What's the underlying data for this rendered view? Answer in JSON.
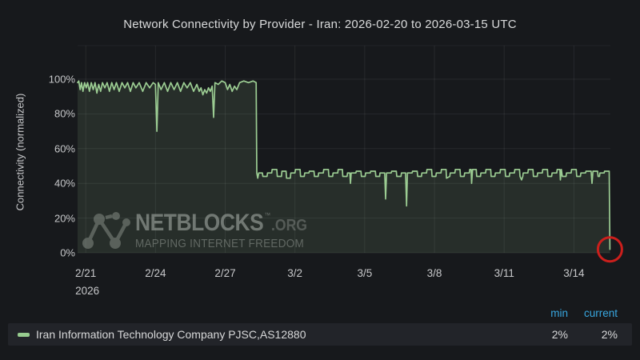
{
  "title": "Network Connectivity by Provider - Iran: 2026-02-20 to 2026-03-15 UTC",
  "watermark": {
    "brand": "NETBLOCKS",
    "tm": "™",
    "suffix": ".ORG",
    "tagline": "MAPPING INTERNET FREEDOM"
  },
  "legend": {
    "headers": {
      "min": "min",
      "current": "current"
    },
    "rows": [
      {
        "label": "Iran Information Technology Company PJSC,AS12880",
        "min": "2%",
        "current": "2%",
        "color": "#97cc8f"
      }
    ]
  },
  "colors": {
    "background": "#17191c",
    "series_green": "#9ccd93",
    "fill_green": "#9ccd93",
    "grid": "rgba(255,255,255,0.07)",
    "tick_text": "#c7c8ca",
    "title_text": "#dadbdc",
    "legend_header_blue": "#38a7e0",
    "annotation_red": "#cc1f1c"
  },
  "chart_data": {
    "type": "area",
    "title": "Network Connectivity by Provider - Iran: 2026-02-20 to 2026-03-15 UTC",
    "xlabel": "",
    "ylabel": "Connectivity (normalized)",
    "x_unit": "days since 2026-02-20 00:00 UTC",
    "x_domain": [
      0.65,
      23.57
    ],
    "ylim": [
      0,
      100
    ],
    "grid": true,
    "legend_position": "bottom",
    "y_ticks": [
      {
        "value": 0,
        "label": "0%"
      },
      {
        "value": 20,
        "label": "20%"
      },
      {
        "value": 40,
        "label": "40%"
      },
      {
        "value": 60,
        "label": "60%"
      },
      {
        "value": 80,
        "label": "80%"
      },
      {
        "value": 100,
        "label": "100%"
      }
    ],
    "x_ticks": [
      {
        "value": 1,
        "label": "2/21",
        "sub": "2026"
      },
      {
        "value": 4,
        "label": "2/24"
      },
      {
        "value": 7,
        "label": "2/27"
      },
      {
        "value": 10,
        "label": "3/2"
      },
      {
        "value": 13,
        "label": "3/5"
      },
      {
        "value": 16,
        "label": "3/8"
      },
      {
        "value": 19,
        "label": "3/11"
      },
      {
        "value": 22,
        "label": "3/14"
      }
    ],
    "series": [
      {
        "name": "Iran Information Technology Company PJSC,AS12880",
        "color": "#9ccd93",
        "stats": {
          "min": 2,
          "current": 2
        },
        "points": [
          [
            0.65,
            98
          ],
          [
            0.7,
            99
          ],
          [
            0.76,
            94
          ],
          [
            0.82,
            98
          ],
          [
            0.88,
            93
          ],
          [
            0.95,
            98
          ],
          [
            1.02,
            95
          ],
          [
            1.08,
            98
          ],
          [
            1.16,
            93
          ],
          [
            1.24,
            98
          ],
          [
            1.32,
            94
          ],
          [
            1.4,
            98
          ],
          [
            1.48,
            92
          ],
          [
            1.56,
            97
          ],
          [
            1.64,
            93
          ],
          [
            1.72,
            98
          ],
          [
            1.82,
            95
          ],
          [
            1.92,
            98
          ],
          [
            2.02,
            93
          ],
          [
            2.12,
            98
          ],
          [
            2.22,
            94
          ],
          [
            2.32,
            98
          ],
          [
            2.44,
            93
          ],
          [
            2.56,
            98
          ],
          [
            2.68,
            95
          ],
          [
            2.8,
            98
          ],
          [
            2.92,
            93
          ],
          [
            3.04,
            98
          ],
          [
            3.16,
            95
          ],
          [
            3.3,
            98
          ],
          [
            3.45,
            93
          ],
          [
            3.6,
            98
          ],
          [
            3.75,
            95
          ],
          [
            3.9,
            98
          ],
          [
            4.0,
            97
          ],
          [
            4.06,
            70
          ],
          [
            4.12,
            98
          ],
          [
            4.24,
            94
          ],
          [
            4.38,
            98
          ],
          [
            4.52,
            93
          ],
          [
            4.66,
            98
          ],
          [
            4.8,
            94
          ],
          [
            4.94,
            98
          ],
          [
            5.08,
            93
          ],
          [
            5.22,
            98
          ],
          [
            5.36,
            95
          ],
          [
            5.5,
            98
          ],
          [
            5.64,
            93
          ],
          [
            5.78,
            97
          ],
          [
            5.88,
            93
          ],
          [
            5.96,
            95
          ],
          [
            6.04,
            91
          ],
          [
            6.12,
            94
          ],
          [
            6.2,
            92
          ],
          [
            6.28,
            95
          ],
          [
            6.36,
            93
          ],
          [
            6.44,
            96
          ],
          [
            6.5,
            78
          ],
          [
            6.56,
            98
          ],
          [
            6.7,
            97
          ],
          [
            6.85,
            99
          ],
          [
            7.0,
            98
          ],
          [
            7.1,
            94
          ],
          [
            7.2,
            97
          ],
          [
            7.3,
            93
          ],
          [
            7.4,
            96
          ],
          [
            7.5,
            94
          ],
          [
            7.62,
            98
          ],
          [
            7.8,
            99
          ],
          [
            8.0,
            98
          ],
          [
            8.2,
            99
          ],
          [
            8.33,
            98
          ],
          [
            8.36,
            46
          ],
          [
            8.4,
            43
          ],
          [
            8.44,
            46
          ],
          [
            8.6,
            46
          ],
          [
            8.62,
            44
          ],
          [
            8.8,
            44
          ],
          [
            8.82,
            46
          ],
          [
            9.0,
            46
          ],
          [
            9.02,
            48
          ],
          [
            9.22,
            48
          ],
          [
            9.24,
            44
          ],
          [
            9.42,
            44
          ],
          [
            9.44,
            47
          ],
          [
            9.62,
            47
          ],
          [
            9.64,
            43
          ],
          [
            9.8,
            43
          ],
          [
            9.82,
            46
          ],
          [
            10.0,
            46
          ],
          [
            10.02,
            48
          ],
          [
            10.22,
            48
          ],
          [
            10.24,
            44
          ],
          [
            10.4,
            44
          ],
          [
            10.42,
            46
          ],
          [
            10.6,
            46
          ],
          [
            10.62,
            47
          ],
          [
            10.82,
            47
          ],
          [
            10.84,
            44
          ],
          [
            11.0,
            44
          ],
          [
            11.02,
            46
          ],
          [
            11.22,
            46
          ],
          [
            11.24,
            48
          ],
          [
            11.44,
            48
          ],
          [
            11.46,
            44
          ],
          [
            11.62,
            44
          ],
          [
            11.64,
            46
          ],
          [
            11.84,
            46
          ],
          [
            11.86,
            48
          ],
          [
            12.04,
            48
          ],
          [
            12.06,
            44
          ],
          [
            12.24,
            44
          ],
          [
            12.26,
            46
          ],
          [
            12.36,
            46
          ],
          [
            12.39,
            40
          ],
          [
            12.42,
            46
          ],
          [
            12.62,
            46
          ],
          [
            12.64,
            47
          ],
          [
            12.84,
            47
          ],
          [
            12.86,
            44
          ],
          [
            13.02,
            44
          ],
          [
            13.04,
            46
          ],
          [
            13.24,
            46
          ],
          [
            13.26,
            47
          ],
          [
            13.46,
            47
          ],
          [
            13.48,
            44
          ],
          [
            13.64,
            44
          ],
          [
            13.66,
            46
          ],
          [
            13.86,
            46
          ],
          [
            13.9,
            31
          ],
          [
            13.94,
            46
          ],
          [
            14.14,
            46
          ],
          [
            14.16,
            47
          ],
          [
            14.36,
            47
          ],
          [
            14.38,
            44
          ],
          [
            14.56,
            44
          ],
          [
            14.58,
            46
          ],
          [
            14.76,
            46
          ],
          [
            14.8,
            27
          ],
          [
            14.84,
            46
          ],
          [
            15.04,
            46
          ],
          [
            15.06,
            47
          ],
          [
            15.26,
            47
          ],
          [
            15.28,
            44
          ],
          [
            15.44,
            44
          ],
          [
            15.46,
            46
          ],
          [
            15.66,
            46
          ],
          [
            15.68,
            48
          ],
          [
            15.88,
            48
          ],
          [
            15.9,
            44
          ],
          [
            16.06,
            44
          ],
          [
            16.08,
            46
          ],
          [
            16.28,
            46
          ],
          [
            16.3,
            48
          ],
          [
            16.5,
            48
          ],
          [
            16.52,
            43
          ],
          [
            16.66,
            44
          ],
          [
            16.68,
            46
          ],
          [
            16.88,
            46
          ],
          [
            16.9,
            48
          ],
          [
            17.1,
            48
          ],
          [
            17.12,
            44
          ],
          [
            17.28,
            44
          ],
          [
            17.3,
            46
          ],
          [
            17.5,
            46
          ],
          [
            17.52,
            48
          ],
          [
            17.58,
            48
          ],
          [
            17.6,
            40
          ],
          [
            17.64,
            48
          ],
          [
            17.8,
            48
          ],
          [
            17.82,
            44
          ],
          [
            17.98,
            44
          ],
          [
            18.0,
            46
          ],
          [
            18.2,
            46
          ],
          [
            18.22,
            48
          ],
          [
            18.42,
            48
          ],
          [
            18.44,
            44
          ],
          [
            18.6,
            44
          ],
          [
            18.62,
            46
          ],
          [
            18.82,
            46
          ],
          [
            18.84,
            48
          ],
          [
            19.04,
            48
          ],
          [
            19.06,
            44
          ],
          [
            19.22,
            44
          ],
          [
            19.24,
            46
          ],
          [
            19.44,
            46
          ],
          [
            19.46,
            48
          ],
          [
            19.66,
            48
          ],
          [
            19.68,
            44
          ],
          [
            19.75,
            42
          ],
          [
            19.8,
            44
          ],
          [
            19.82,
            46
          ],
          [
            20.02,
            46
          ],
          [
            20.04,
            48
          ],
          [
            20.24,
            48
          ],
          [
            20.26,
            44
          ],
          [
            20.42,
            44
          ],
          [
            20.44,
            46
          ],
          [
            20.64,
            46
          ],
          [
            20.66,
            48
          ],
          [
            20.86,
            48
          ],
          [
            20.88,
            44
          ],
          [
            21.04,
            44
          ],
          [
            21.06,
            46
          ],
          [
            21.26,
            46
          ],
          [
            21.28,
            48
          ],
          [
            21.4,
            48
          ],
          [
            21.42,
            42
          ],
          [
            21.46,
            48
          ],
          [
            21.5,
            44
          ],
          [
            21.66,
            44
          ],
          [
            21.68,
            46
          ],
          [
            21.88,
            46
          ],
          [
            21.9,
            48
          ],
          [
            22.1,
            48
          ],
          [
            22.12,
            44
          ],
          [
            22.28,
            44
          ],
          [
            22.3,
            46
          ],
          [
            22.5,
            46
          ],
          [
            22.52,
            47
          ],
          [
            22.74,
            47
          ],
          [
            22.78,
            40
          ],
          [
            22.82,
            47
          ],
          [
            23.02,
            47
          ],
          [
            23.04,
            44
          ],
          [
            23.1,
            44
          ],
          [
            23.12,
            46
          ],
          [
            23.3,
            46
          ],
          [
            23.32,
            47
          ],
          [
            23.52,
            47
          ],
          [
            23.55,
            2
          ]
        ]
      }
    ],
    "annotations": [
      {
        "type": "circle",
        "x": 23.55,
        "y": 2,
        "radius_px": 15,
        "color": "#cc1f1c",
        "label": "final-drop-highlight"
      }
    ]
  }
}
